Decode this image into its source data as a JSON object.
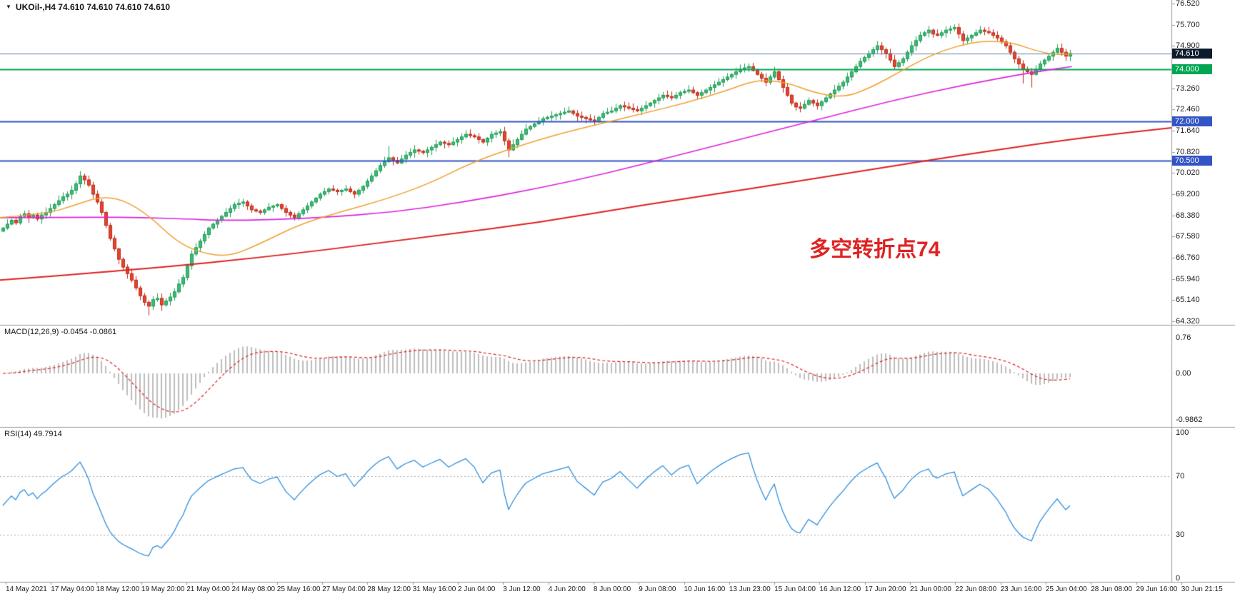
{
  "header": {
    "symbol_period": "UKOil-,H4",
    "quotes_text": "74.610 74.610 74.610 74.610"
  },
  "annotation": {
    "text": "多空转折点74",
    "color": "#e02222"
  },
  "chart_data": {
    "type": "candlestick",
    "symbol": "UKOil-",
    "timeframe": "H4",
    "last_ohlc": {
      "open": 74.61,
      "high": 74.61,
      "low": 74.61,
      "close": 74.61
    },
    "ylim": [
      64.21,
      76.66
    ],
    "current_price": 74.61,
    "price_ticks": [
      "76.520",
      "75.700",
      "74.900",
      "73.260",
      "72.460",
      "71.640",
      "70.820",
      "70.020",
      "69.200",
      "68.380",
      "67.580",
      "66.760",
      "65.940",
      "65.140",
      "64.320"
    ],
    "time_labels": [
      "14 May 2021",
      "17 May 04:00",
      "18 May 12:00",
      "19 May 20:00",
      "21 May 04:00",
      "24 May 08:00",
      "25 May 16:00",
      "27 May 04:00",
      "28 May 12:00",
      "31 May 16:00",
      "2 Jun 04:00",
      "3 Jun 12:00",
      "4 Jun 20:00",
      "8 Jun 00:00",
      "9 Jun 08:00",
      "10 Jun 16:00",
      "13 Jun 23:00",
      "15 Jun 04:00",
      "16 Jun 12:00",
      "17 Jun 20:00",
      "21 Jun 00:00",
      "22 Jun 08:00",
      "23 Jun 16:00",
      "25 Jun 04:00",
      "28 Jun 08:00",
      "29 Jun 16:00",
      "30 Jun 21:15"
    ],
    "closes": [
      67.9,
      68.05,
      68.2,
      68.1,
      68.35,
      68.45,
      68.3,
      68.4,
      68.25,
      68.4,
      68.5,
      68.65,
      68.8,
      68.95,
      69.1,
      69.2,
      69.35,
      69.6,
      69.9,
      69.75,
      69.55,
      69.2,
      68.9,
      68.5,
      68.0,
      67.5,
      67.1,
      66.7,
      66.4,
      66.15,
      65.9,
      65.6,
      65.3,
      65.05,
      64.9,
      65.15,
      65.2,
      64.95,
      65.1,
      65.25,
      65.45,
      65.75,
      66.0,
      66.45,
      66.9,
      67.15,
      67.4,
      67.65,
      67.9,
      68.05,
      68.2,
      68.35,
      68.5,
      68.65,
      68.8,
      68.85,
      68.9,
      68.75,
      68.6,
      68.55,
      68.5,
      68.6,
      68.7,
      68.75,
      68.8,
      68.65,
      68.5,
      68.4,
      68.3,
      68.45,
      68.6,
      68.75,
      68.9,
      69.05,
      69.2,
      69.3,
      69.4,
      69.35,
      69.3,
      69.35,
      69.4,
      69.3,
      69.2,
      69.35,
      69.5,
      69.7,
      69.9,
      70.1,
      70.3,
      70.45,
      70.6,
      70.5,
      70.4,
      70.55,
      70.7,
      70.8,
      70.9,
      70.85,
      70.8,
      70.9,
      71.0,
      71.1,
      71.2,
      71.15,
      71.1,
      71.2,
      71.3,
      71.4,
      71.5,
      71.45,
      71.4,
      71.3,
      71.2,
      71.35,
      71.5,
      71.55,
      71.6,
      71.25,
      70.9,
      71.1,
      71.3,
      71.5,
      71.7,
      71.8,
      71.9,
      72.0,
      72.1,
      72.15,
      72.2,
      72.25,
      72.3,
      72.35,
      72.4,
      72.3,
      72.2,
      72.15,
      72.1,
      72.05,
      72.0,
      72.15,
      72.3,
      72.35,
      72.4,
      72.5,
      72.6,
      72.55,
      72.5,
      72.45,
      72.4,
      72.5,
      72.6,
      72.7,
      72.8,
      72.9,
      73.0,
      72.95,
      72.9,
      73.0,
      73.1,
      73.15,
      73.2,
      73.1,
      73.0,
      73.1,
      73.2,
      73.3,
      73.4,
      73.5,
      73.6,
      73.7,
      73.8,
      73.9,
      74.0,
      74.05,
      74.1,
      73.95,
      73.8,
      73.65,
      73.5,
      73.7,
      73.9,
      73.6,
      73.3,
      73.0,
      72.7,
      72.55,
      72.5,
      72.65,
      72.8,
      72.7,
      72.6,
      72.75,
      72.9,
      73.05,
      73.2,
      73.35,
      73.5,
      73.7,
      73.9,
      74.1,
      74.3,
      74.45,
      74.6,
      74.75,
      74.9,
      74.75,
      74.6,
      74.35,
      74.1,
      74.25,
      74.4,
      74.65,
      74.9,
      75.1,
      75.3,
      75.4,
      75.5,
      75.35,
      75.3,
      75.4,
      75.5,
      75.55,
      75.6,
      75.35,
      75.1,
      75.2,
      75.3,
      75.4,
      75.5,
      75.45,
      75.4,
      75.3,
      75.2,
      75.05,
      74.9,
      74.65,
      74.4,
      74.2,
      74.0,
      73.9,
      73.8,
      74.0,
      74.2,
      74.35,
      74.5,
      74.65,
      74.8,
      74.65,
      74.5,
      74.61
    ],
    "high_overrides": {
      "18": 70.08,
      "90": 71.05,
      "216": 75.66,
      "222": 75.72,
      "228": 75.66
    },
    "low_overrides": {
      "34": 64.55,
      "37": 64.72,
      "118": 70.62,
      "238": 73.45,
      "240": 73.3
    },
    "colors": {
      "up": "#3fba78",
      "up_edge": "#1e9e55",
      "down": "#e2452f",
      "down_edge": "#bf2c1a",
      "background": "#ffffff"
    },
    "moving_averages": [
      {
        "name": "ma-slow-red",
        "color": "#e02020",
        "width": 2,
        "anchors": [
          [
            0,
            65.9
          ],
          [
            0.12,
            66.3
          ],
          [
            0.25,
            66.9
          ],
          [
            0.37,
            67.6
          ],
          [
            0.46,
            68.1
          ],
          [
            0.55,
            68.8
          ],
          [
            0.64,
            69.4
          ],
          [
            0.73,
            70.05
          ],
          [
            0.82,
            70.7
          ],
          [
            0.92,
            71.35
          ],
          [
            1.0,
            71.75
          ]
        ]
      },
      {
        "name": "ma-mid-magenta",
        "color": "#dd22dd",
        "width": 1.7,
        "anchors": [
          [
            0,
            68.3
          ],
          [
            0.08,
            68.32
          ],
          [
            0.122,
            68.3
          ],
          [
            0.16,
            68.25
          ],
          [
            0.183,
            68.2
          ],
          [
            0.22,
            68.2
          ],
          [
            0.274,
            68.3
          ],
          [
            0.335,
            68.5
          ],
          [
            0.396,
            68.9
          ],
          [
            0.457,
            69.4
          ],
          [
            0.518,
            70.0
          ],
          [
            0.579,
            70.7
          ],
          [
            0.64,
            71.4
          ],
          [
            0.701,
            72.1
          ],
          [
            0.762,
            72.8
          ],
          [
            0.823,
            73.4
          ],
          [
            0.884,
            73.9
          ],
          [
            0.915,
            74.1
          ]
        ]
      },
      {
        "name": "ma-fast-orange",
        "color": "#f0a030",
        "width": 1.5,
        "anchors": [
          [
            0,
            68.3
          ],
          [
            0.04,
            68.45
          ],
          [
            0.062,
            68.75
          ],
          [
            0.085,
            69.1
          ],
          [
            0.105,
            69.0
          ],
          [
            0.128,
            68.35
          ],
          [
            0.15,
            67.4
          ],
          [
            0.171,
            66.95
          ],
          [
            0.195,
            66.8
          ],
          [
            0.22,
            67.25
          ],
          [
            0.256,
            68.05
          ],
          [
            0.293,
            68.55
          ],
          [
            0.329,
            69.0
          ],
          [
            0.366,
            69.6
          ],
          [
            0.402,
            70.4
          ],
          [
            0.439,
            71.0
          ],
          [
            0.476,
            71.5
          ],
          [
            0.512,
            71.9
          ],
          [
            0.549,
            72.3
          ],
          [
            0.585,
            72.7
          ],
          [
            0.622,
            73.2
          ],
          [
            0.646,
            73.6
          ],
          [
            0.671,
            73.5
          ],
          [
            0.695,
            73.1
          ],
          [
            0.72,
            72.9
          ],
          [
            0.744,
            73.3
          ],
          [
            0.768,
            73.9
          ],
          [
            0.793,
            74.5
          ],
          [
            0.817,
            74.9
          ],
          [
            0.841,
            75.1
          ],
          [
            0.866,
            75.0
          ],
          [
            0.884,
            74.7
          ],
          [
            0.902,
            74.55
          ],
          [
            0.915,
            74.6
          ]
        ]
      }
    ],
    "levels": [
      {
        "price": 74.61,
        "label": "74.610",
        "line_color": "#5b7fa6",
        "tag_bg": "#0c1c2c",
        "style": "bid"
      },
      {
        "price": 74.0,
        "label": "74.000",
        "line_color": "#00a651",
        "tag_bg": "#00a651",
        "style": "solid"
      },
      {
        "price": 72.0,
        "label": "72.000",
        "line_color": "#3254c5",
        "tag_bg": "#3254c5",
        "style": "solid"
      },
      {
        "price": 70.5,
        "label": "70.500",
        "line_color": "#3254c5",
        "tag_bg": "#3254c5",
        "style": "solid"
      }
    ],
    "indicators": {
      "macd": {
        "name": "MACD(12,26,9)",
        "display_values": "-0.0454 -0.0861",
        "params": {
          "fast": 12,
          "slow": 26,
          "signal": 9
        },
        "scale": {
          "top": "0.76",
          "zero": "0.00",
          "bottom": "-0.9862"
        },
        "histogram_color": "#bdbdbd",
        "signal_color": "#e02020",
        "signal_style": "dashed"
      },
      "rsi": {
        "name": "RSI(14)",
        "display_value": "49.7914",
        "period": 14,
        "line_color": "#2f8fde",
        "levels": [
          70,
          30
        ],
        "scale_labels": [
          "100",
          "70",
          "30",
          "0"
        ]
      }
    }
  }
}
